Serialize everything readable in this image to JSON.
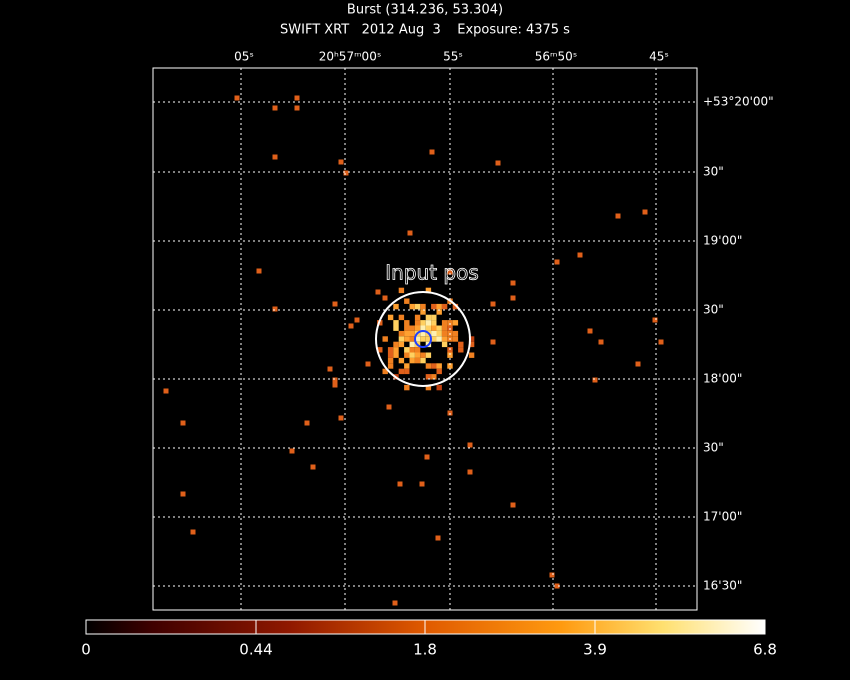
{
  "title": "Burst (314.236, 53.304)",
  "subtitle": "SWIFT XRT   2012 Aug  3    Exposure: 4375 s",
  "ra_labels": [
    "05ˢ",
    "20ʰ57ᵐ00ˢ",
    "55ˢ",
    "56ᵐ50ˢ",
    "45ˢ"
  ],
  "dec_labels": [
    "+53°20'00\"",
    "30\"",
    "19'00\"",
    "30\"",
    "18'00\"",
    "30\"",
    "17'00\"",
    "16'30\""
  ],
  "annotation": "Input pos",
  "colorbar_labels": [
    "0",
    "0.44",
    "1.8",
    "3.9",
    "6.8"
  ]
}
